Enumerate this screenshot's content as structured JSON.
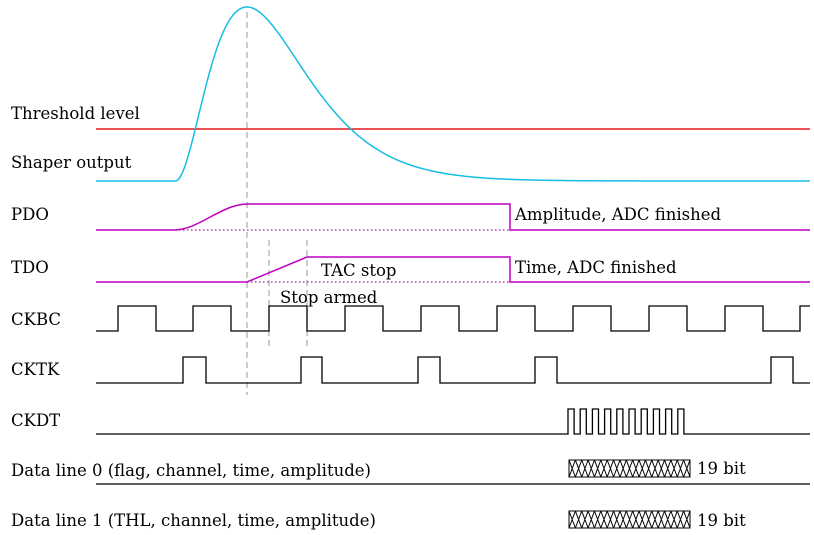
{
  "signals": {
    "threshold": "Threshold level",
    "shaper": "Shaper output",
    "pdo": "PDO",
    "tdo": "TDO",
    "ckbc": "CKBC",
    "cktk": "CKTK",
    "ckdt": "CKDT",
    "data0": "Data line 0 (flag, channel, time, amplitude)",
    "data1": "Data line 1 (THL, channel, time, amplitude)"
  },
  "annotations": {
    "pdo_finished": "Amplitude, ADC finished",
    "tdo_finished": "Time, ADC finished",
    "tac_stop": "TAC stop",
    "stop_armed": "Stop armed",
    "data0_bits": "19 bit",
    "data1_bits": "19 bit"
  },
  "colors": {
    "shaper": "#17bde0",
    "threshold": "#e31a1c",
    "pdo_tdo": "#c000c0",
    "clocks": "#000000",
    "guides": "#a8a8a8"
  }
}
